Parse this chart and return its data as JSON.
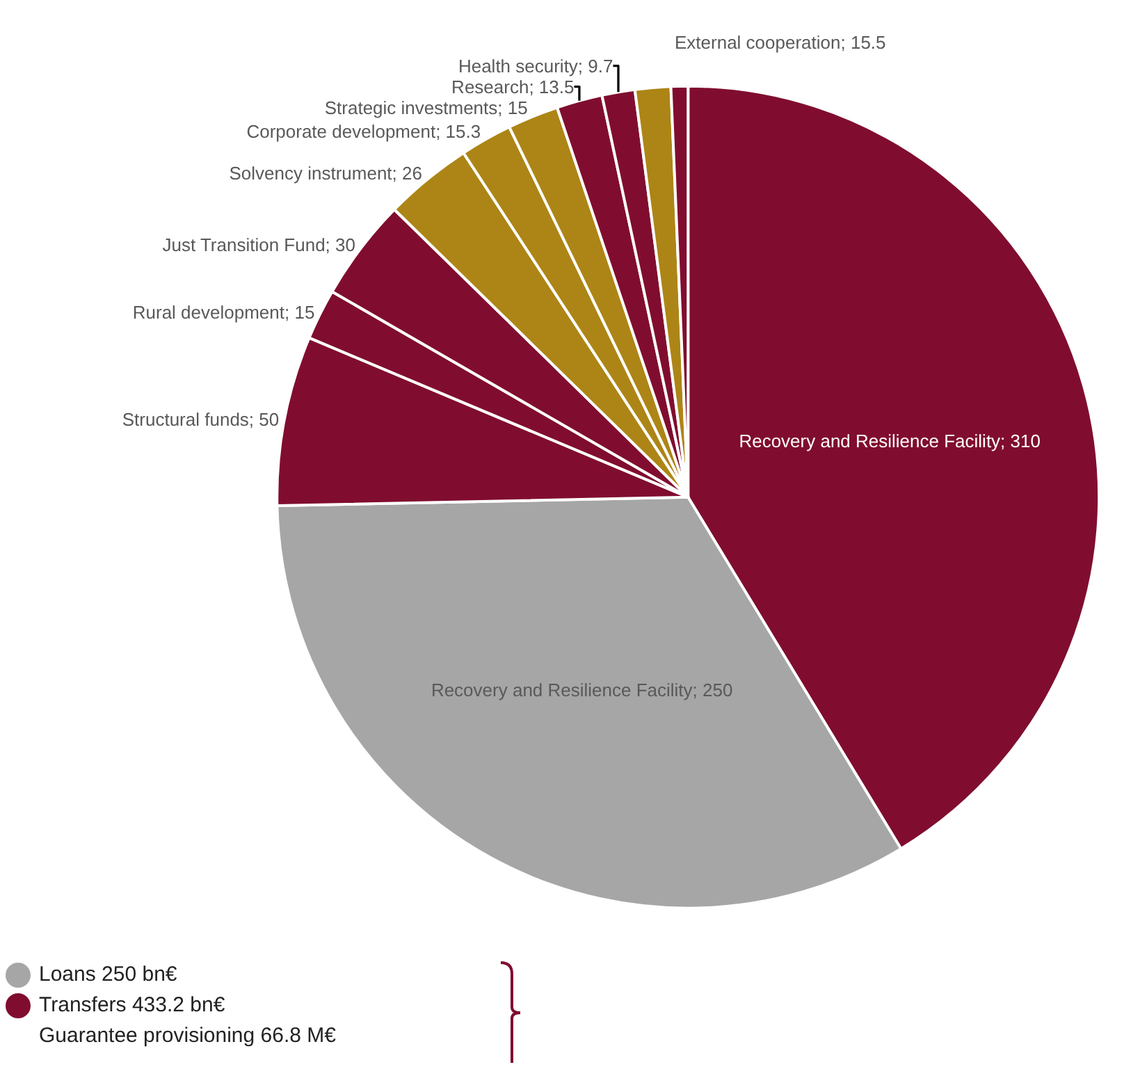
{
  "chart_data": {
    "type": "pie",
    "categories": [
      "Recovery and Resilience Facility; 310",
      "Recovery and Resilience Facility; 250",
      "Structural funds; 50",
      "Rural development; 15",
      "Just Transition Fund; 30",
      "Solvency instrument; 26",
      "Corporate development; 15.3",
      "Strategic investments; 15",
      "Research; 13.5",
      "Health security; 9.7",
      null,
      null
    ],
    "values": [
      310,
      250,
      50,
      15,
      30,
      26,
      15.3,
      15,
      13.5,
      9.7,
      10.5,
      5
    ],
    "colors": [
      "#800d2f",
      "#a6a6a6",
      "#800d2f",
      "#800d2f",
      "#800d2f",
      "#ad8516",
      "#ad8516",
      "#ad8516",
      "#800d2f",
      "#800d2f",
      "#ad8516",
      "#800d2f"
    ],
    "annotations": [
      "External cooperation; 15.5",
      "Loans 250 bn€",
      "Transfers 433.2 bn€",
      "Guarantee provisioning 66.8 M€"
    ]
  }
}
